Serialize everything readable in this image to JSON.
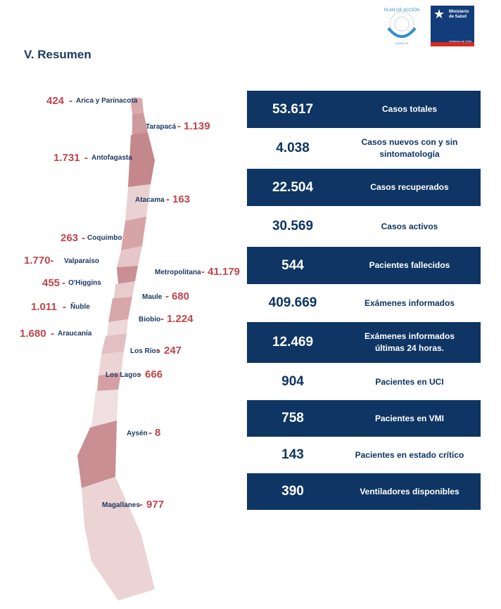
{
  "title": "V. Resumen",
  "logos": {
    "plan_text": "PLAN DE ACCIÓN CORONAVIRUS COVID-19",
    "ministerio": "Ministerio de Salud",
    "gobierno": "Gobierno de Chile"
  },
  "regions": [
    {
      "name": "Arica y Parinacota",
      "value": "424"
    },
    {
      "name": "Tarapacá",
      "value": "1.139"
    },
    {
      "name": "Antofagasta",
      "value": "1.731"
    },
    {
      "name": "Atacama",
      "value": "163"
    },
    {
      "name": "Coquimbo",
      "value": "263"
    },
    {
      "name": "Valparaíso",
      "value": "1.770-"
    },
    {
      "name": "Metropolitana",
      "value": "41.179"
    },
    {
      "name": "O'Higgins",
      "value": "455"
    },
    {
      "name": "Maule",
      "value": "680"
    },
    {
      "name": "Ñuble",
      "value": "1.011"
    },
    {
      "name": "Biobío",
      "value": "1.224"
    },
    {
      "name": "Araucanía",
      "value": "1.680"
    },
    {
      "name": "Los Ríos",
      "value": "247"
    },
    {
      "name": "Los Lagos",
      "value": "666"
    },
    {
      "name": "Aysén",
      "value": "8"
    },
    {
      "name": "Magallanes",
      "value": "977"
    }
  ],
  "summary": [
    {
      "value": "53.617",
      "label": "Casos totales"
    },
    {
      "value": "4.038",
      "label": "Casos nuevos con y sin sintomatología"
    },
    {
      "value": "22.504",
      "label": "Casos recuperados"
    },
    {
      "value": "30.569",
      "label": "Casos activos"
    },
    {
      "value": "544",
      "label": "Pacientes fallecidos"
    },
    {
      "value": "409.669",
      "label": "Exámenes informados"
    },
    {
      "value": "12.469",
      "label": "Exámenes informados últimas 24 horas."
    },
    {
      "value": "904",
      "label": "Pacientes en UCI"
    },
    {
      "value": "758",
      "label": "Pacientes en VMI"
    },
    {
      "value": "143",
      "label": "Pacientes en estado crítico"
    },
    {
      "value": "390",
      "label": "Ventiladores disponibles"
    }
  ]
}
